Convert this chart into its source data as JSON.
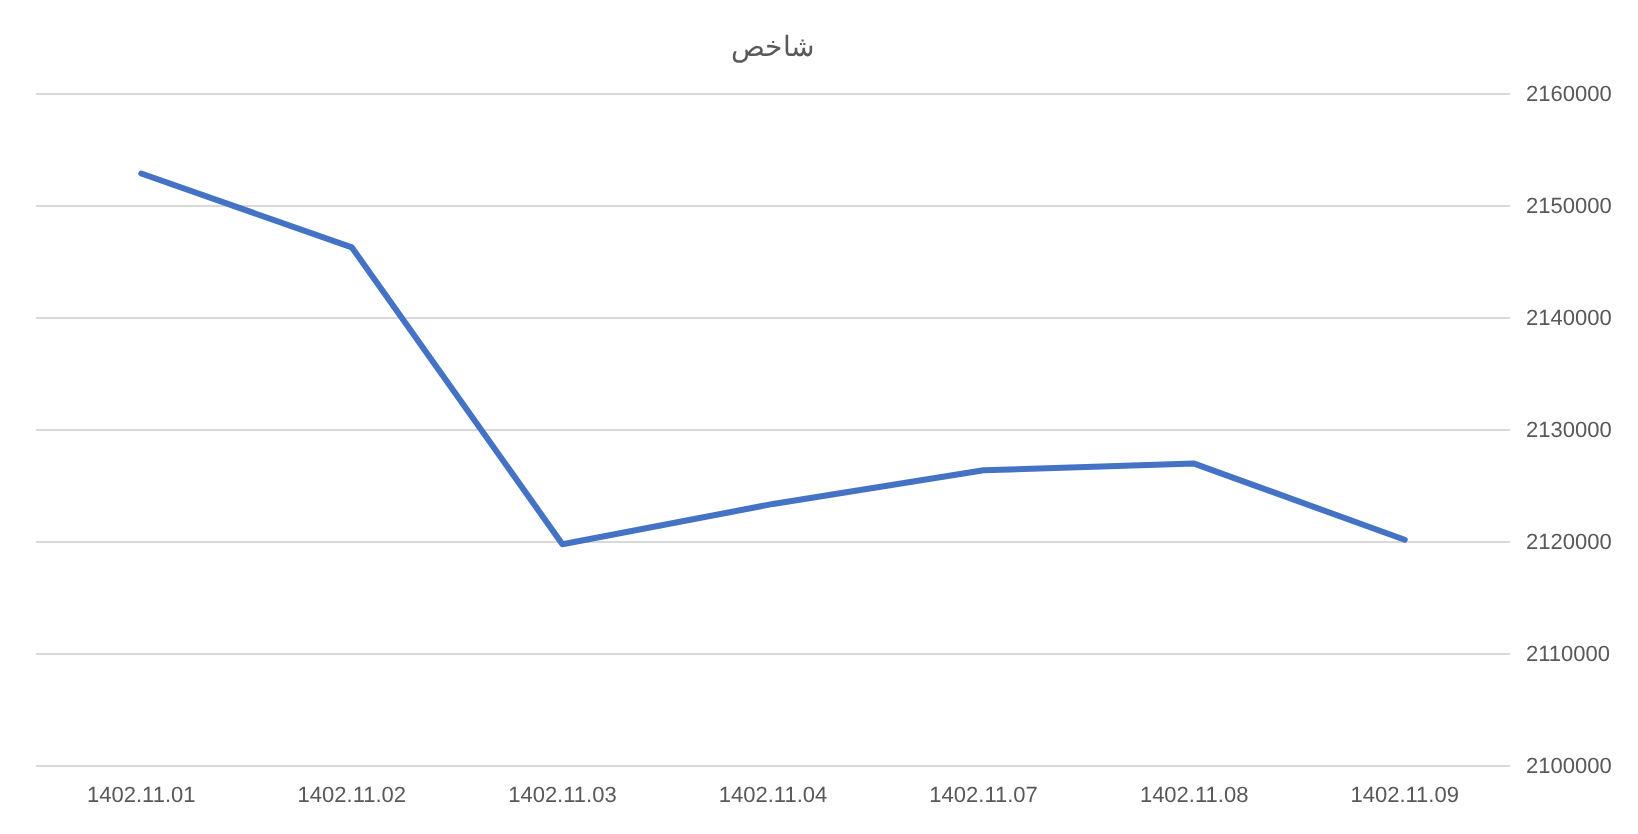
{
  "chart_data": {
    "type": "line",
    "title": "شاخص",
    "categories": [
      "1402.11.01",
      "1402.11.02",
      "1402.11.03",
      "1402.11.04",
      "1402.11.07",
      "1402.11.08",
      "1402.11.09"
    ],
    "series": [
      {
        "color": "#4472c4",
        "values": [
          2152900,
          2146300,
          2119800,
          2123400,
          2126400,
          2127000,
          2120200
        ]
      }
    ],
    "ylim": [
      2100000,
      2160000
    ],
    "yticks": [
      2100000,
      2110000,
      2120000,
      2130000,
      2140000,
      2150000,
      2160000
    ],
    "grid": "y",
    "marker": "none",
    "line_style": "solid"
  }
}
